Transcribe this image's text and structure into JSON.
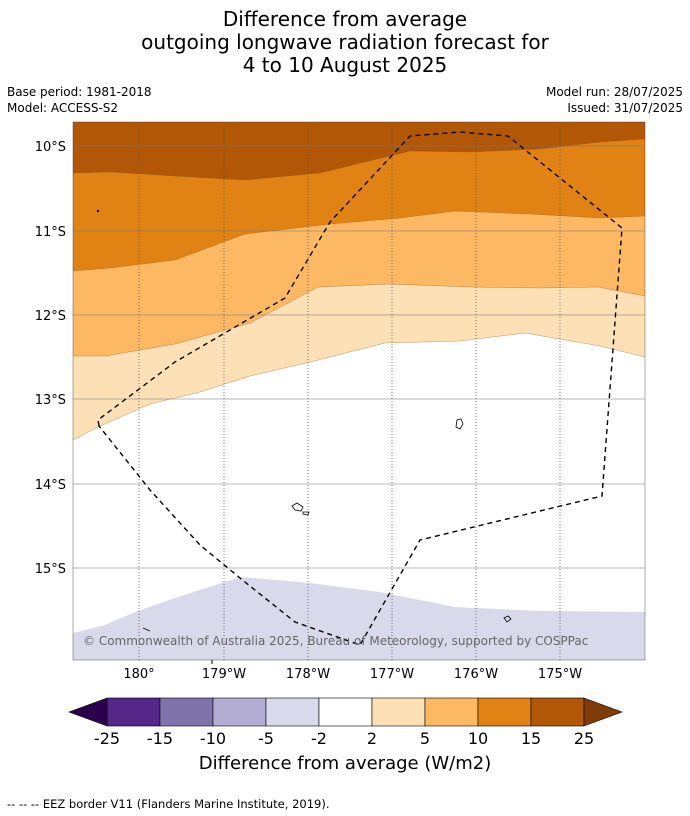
{
  "title": {
    "line1": "Difference from average",
    "line2": "outgoing longwave radiation forecast for",
    "line3": "4 to 10 August 2025"
  },
  "meta": {
    "base_period": "Base period: 1981-2018",
    "model": "Model: ACCESS-S2",
    "model_run": "Model run: 28/07/2025",
    "issued": "Issued: 31/07/2025"
  },
  "map": {
    "lat_labels": [
      "10°S",
      "11°S",
      "12°S",
      "13°S",
      "14°S",
      "15°S"
    ],
    "lon_labels": [
      "180°",
      "179°W",
      "178°W",
      "177°W",
      "176°W",
      "175°W"
    ],
    "copyright": "© Commonwealth of Australia 2025, Bureau of Meteorology, supported by COSPPac",
    "colors": {
      "gt15": "#b15706",
      "10to15": "#e08214",
      "5to10": "#fdb863",
      "2to5": "#fee0b6",
      "neutral": "#ffffff",
      "m5tom2": "#d8daeb",
      "m10tom5": "#b2abd2",
      "m15tom10": "#8073ac",
      "m25tom15": "#542788",
      "lt_m25": "#2d004b",
      "gt25": "#7f3b08"
    }
  },
  "colorbar": {
    "ticks": [
      "-25",
      "-15",
      "-10",
      "-5",
      "-2",
      "2",
      "5",
      "10",
      "15",
      "25"
    ],
    "colors": [
      "#542788",
      "#8073ac",
      "#b2abd2",
      "#d8daeb",
      "#ffffff",
      "#fee0b6",
      "#fdb863",
      "#e08214",
      "#b15706"
    ],
    "low_extend_color": "#2d004b",
    "high_extend_color": "#7f3b08",
    "label": "Difference from average (W/m2)"
  },
  "footer": "--  --  -- EEZ border V11 (Flanders Marine Institute, 2019)."
}
